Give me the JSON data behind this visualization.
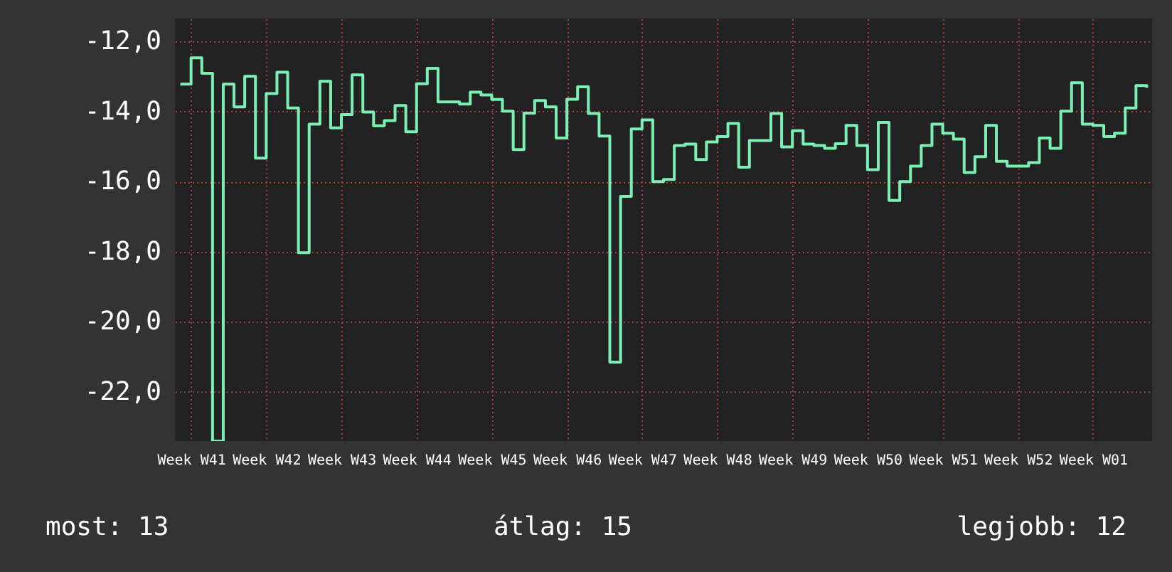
{
  "chart_data": {
    "type": "step",
    "categories": [
      null,
      "Week W41",
      null,
      null,
      null,
      null,
      null,
      null,
      "Week W42",
      null,
      null,
      null,
      null,
      null,
      null,
      "Week W43",
      null,
      null,
      null,
      null,
      null,
      null,
      "Week W44",
      null,
      null,
      null,
      null,
      null,
      null,
      "Week W45",
      null,
      null,
      null,
      null,
      null,
      null,
      "Week W46",
      null,
      null,
      null,
      null,
      null,
      null,
      "Week W47",
      null,
      null,
      null,
      null,
      null,
      null,
      "Week W48",
      null,
      null,
      null,
      null,
      null,
      null,
      "Week W49",
      null,
      null,
      null,
      null,
      null,
      null,
      "Week W50",
      null,
      null,
      null,
      null,
      null,
      null,
      "Week W51",
      null,
      null,
      null,
      null,
      null,
      null,
      "Week W52",
      null,
      null,
      null,
      null,
      null,
      null,
      "Week W01",
      null,
      null,
      null,
      null,
      null
    ],
    "series": [
      {
        "color": "#7cf0b4",
        "values": [
          -13.22,
          -12.47,
          -12.91,
          -23.4,
          -13.22,
          -13.87,
          -13.0,
          -15.33,
          -13.49,
          -12.88,
          -13.9,
          -18.03,
          -14.36,
          -13.14,
          -14.47,
          -14.09,
          -12.96,
          -14.02,
          -14.41,
          -14.26,
          -13.83,
          -14.58,
          -13.21,
          -12.77,
          -13.73,
          -13.73,
          -13.79,
          -13.45,
          -13.53,
          -13.66,
          -13.99,
          -15.09,
          -14.05,
          -13.69,
          -13.87,
          -14.76,
          -13.65,
          -13.3,
          -14.06,
          -14.7,
          -21.15,
          -16.42,
          -14.5,
          -14.24,
          -16.0,
          -15.94,
          -14.97,
          -14.93,
          -15.37,
          -14.87,
          -14.72,
          -14.34,
          -15.59,
          -14.83,
          -14.83,
          -14.06,
          -15.01,
          -14.55,
          -14.93,
          -14.97,
          -15.05,
          -14.92,
          -14.4,
          -14.97,
          -15.66,
          -14.31,
          -16.54,
          -16.0,
          -15.56,
          -14.97,
          -14.36,
          -14.62,
          -14.79,
          -15.74,
          -15.29,
          -14.4,
          -15.42,
          -15.56,
          -15.56,
          -15.46,
          -14.76,
          -15.05,
          -13.99,
          -13.18,
          -14.36,
          -14.4,
          -14.72,
          -14.62,
          -13.9,
          -13.26,
          -13.33
        ]
      }
    ],
    "ylim": [
      -23.4,
      -11.35
    ],
    "yticks": [
      {
        "value": -12,
        "label": "-12,0"
      },
      {
        "value": -14,
        "label": "-14,0"
      },
      {
        "value": -16,
        "label": "-16,0"
      },
      {
        "value": -18,
        "label": "-18,0"
      },
      {
        "value": -20,
        "label": "-20,0"
      },
      {
        "value": -22,
        "label": "-22,0"
      }
    ],
    "grid": true,
    "annotations": [
      "most: 13",
      "átlag: 15",
      "legjobb: 12"
    ]
  }
}
